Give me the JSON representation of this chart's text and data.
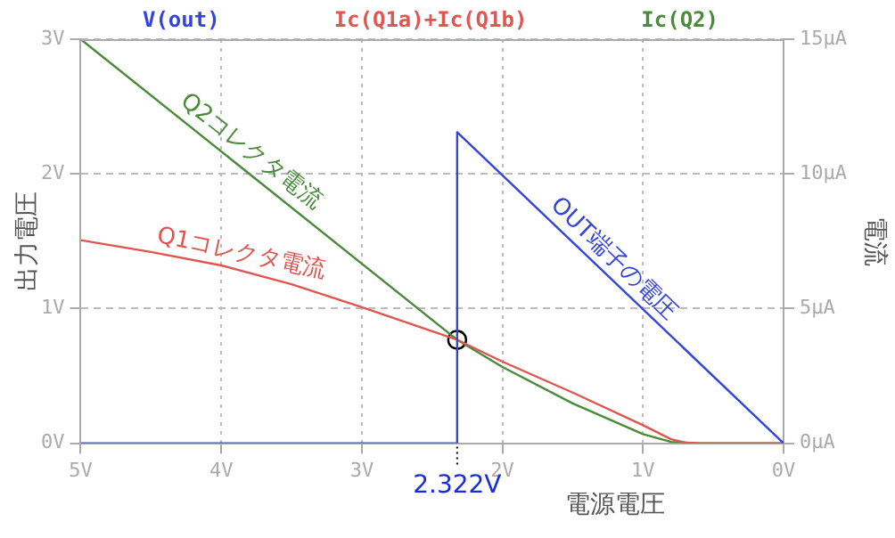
{
  "chart_data": {
    "type": "line",
    "xlabel": "電源電圧",
    "ylabel": "出力電圧",
    "y2label": "電流",
    "xlim": [
      5,
      0
    ],
    "xticks": [
      {
        "value": 5,
        "label": "5V"
      },
      {
        "value": 4,
        "label": "4V"
      },
      {
        "value": 3,
        "label": "3V"
      },
      {
        "value": 2,
        "label": "2V"
      },
      {
        "value": 1,
        "label": "1V"
      },
      {
        "value": 0,
        "label": "0V"
      }
    ],
    "ylim": [
      0,
      3
    ],
    "yticks": [
      {
        "value": 0,
        "label": "0V"
      },
      {
        "value": 1,
        "label": "1V"
      },
      {
        "value": 2,
        "label": "2V"
      },
      {
        "value": 3,
        "label": "3V"
      }
    ],
    "y2lim": [
      0,
      15
    ],
    "y2ticks": [
      {
        "value": 0,
        "label": "0µA"
      },
      {
        "value": 5,
        "label": "5µA"
      },
      {
        "value": 10,
        "label": "10µA"
      },
      {
        "value": 15,
        "label": "15µA"
      }
    ],
    "grid": true,
    "legend": "top",
    "marker": "none",
    "line_style": "solid",
    "series": [
      {
        "name": "V(out)",
        "color": "#3344dd",
        "x": [
          5,
          2.322,
          2.322,
          0
        ],
        "values": [
          0,
          0,
          2.31,
          0
        ]
      },
      {
        "name": "Ic(Q1a)+Ic(Q1b)",
        "color": "#e0554f",
        "axis": "y2",
        "x": [
          5,
          4.5,
          4,
          3.5,
          3,
          2.322,
          2,
          1.5,
          1,
          0.8,
          0.7,
          0.6,
          0
        ],
        "values": [
          7.54,
          7.1,
          6.6,
          5.9,
          5.05,
          3.84,
          3.03,
          1.88,
          0.67,
          0.15,
          0.02,
          0,
          0
        ]
      },
      {
        "name": "Ic(Q2)",
        "color": "#4a8a3a",
        "axis": "y2",
        "x": [
          5,
          2.322,
          2,
          1.5,
          1,
          0.8,
          0.6,
          0
        ],
        "values": [
          15,
          3.84,
          2.83,
          1.48,
          0.34,
          0.05,
          0,
          0
        ]
      },
      {
        "type": "scatter",
        "color": "#000000",
        "axis": "y2",
        "marker": "circle",
        "x": [
          2.322
        ],
        "values": [
          3.84
        ]
      }
    ],
    "annotations": [
      {
        "text": "Q2コレクタ電流",
        "x": 3.86,
        "y": 2.07
      },
      {
        "text": "Q1コレクタ電流",
        "x": 3.88,
        "y": 1.29
      },
      {
        "text": "OUT端子の電圧",
        "x": 1.29,
        "y": 1.28
      },
      {
        "text": "2.322V",
        "x": 2.322,
        "y": 0
      }
    ]
  }
}
